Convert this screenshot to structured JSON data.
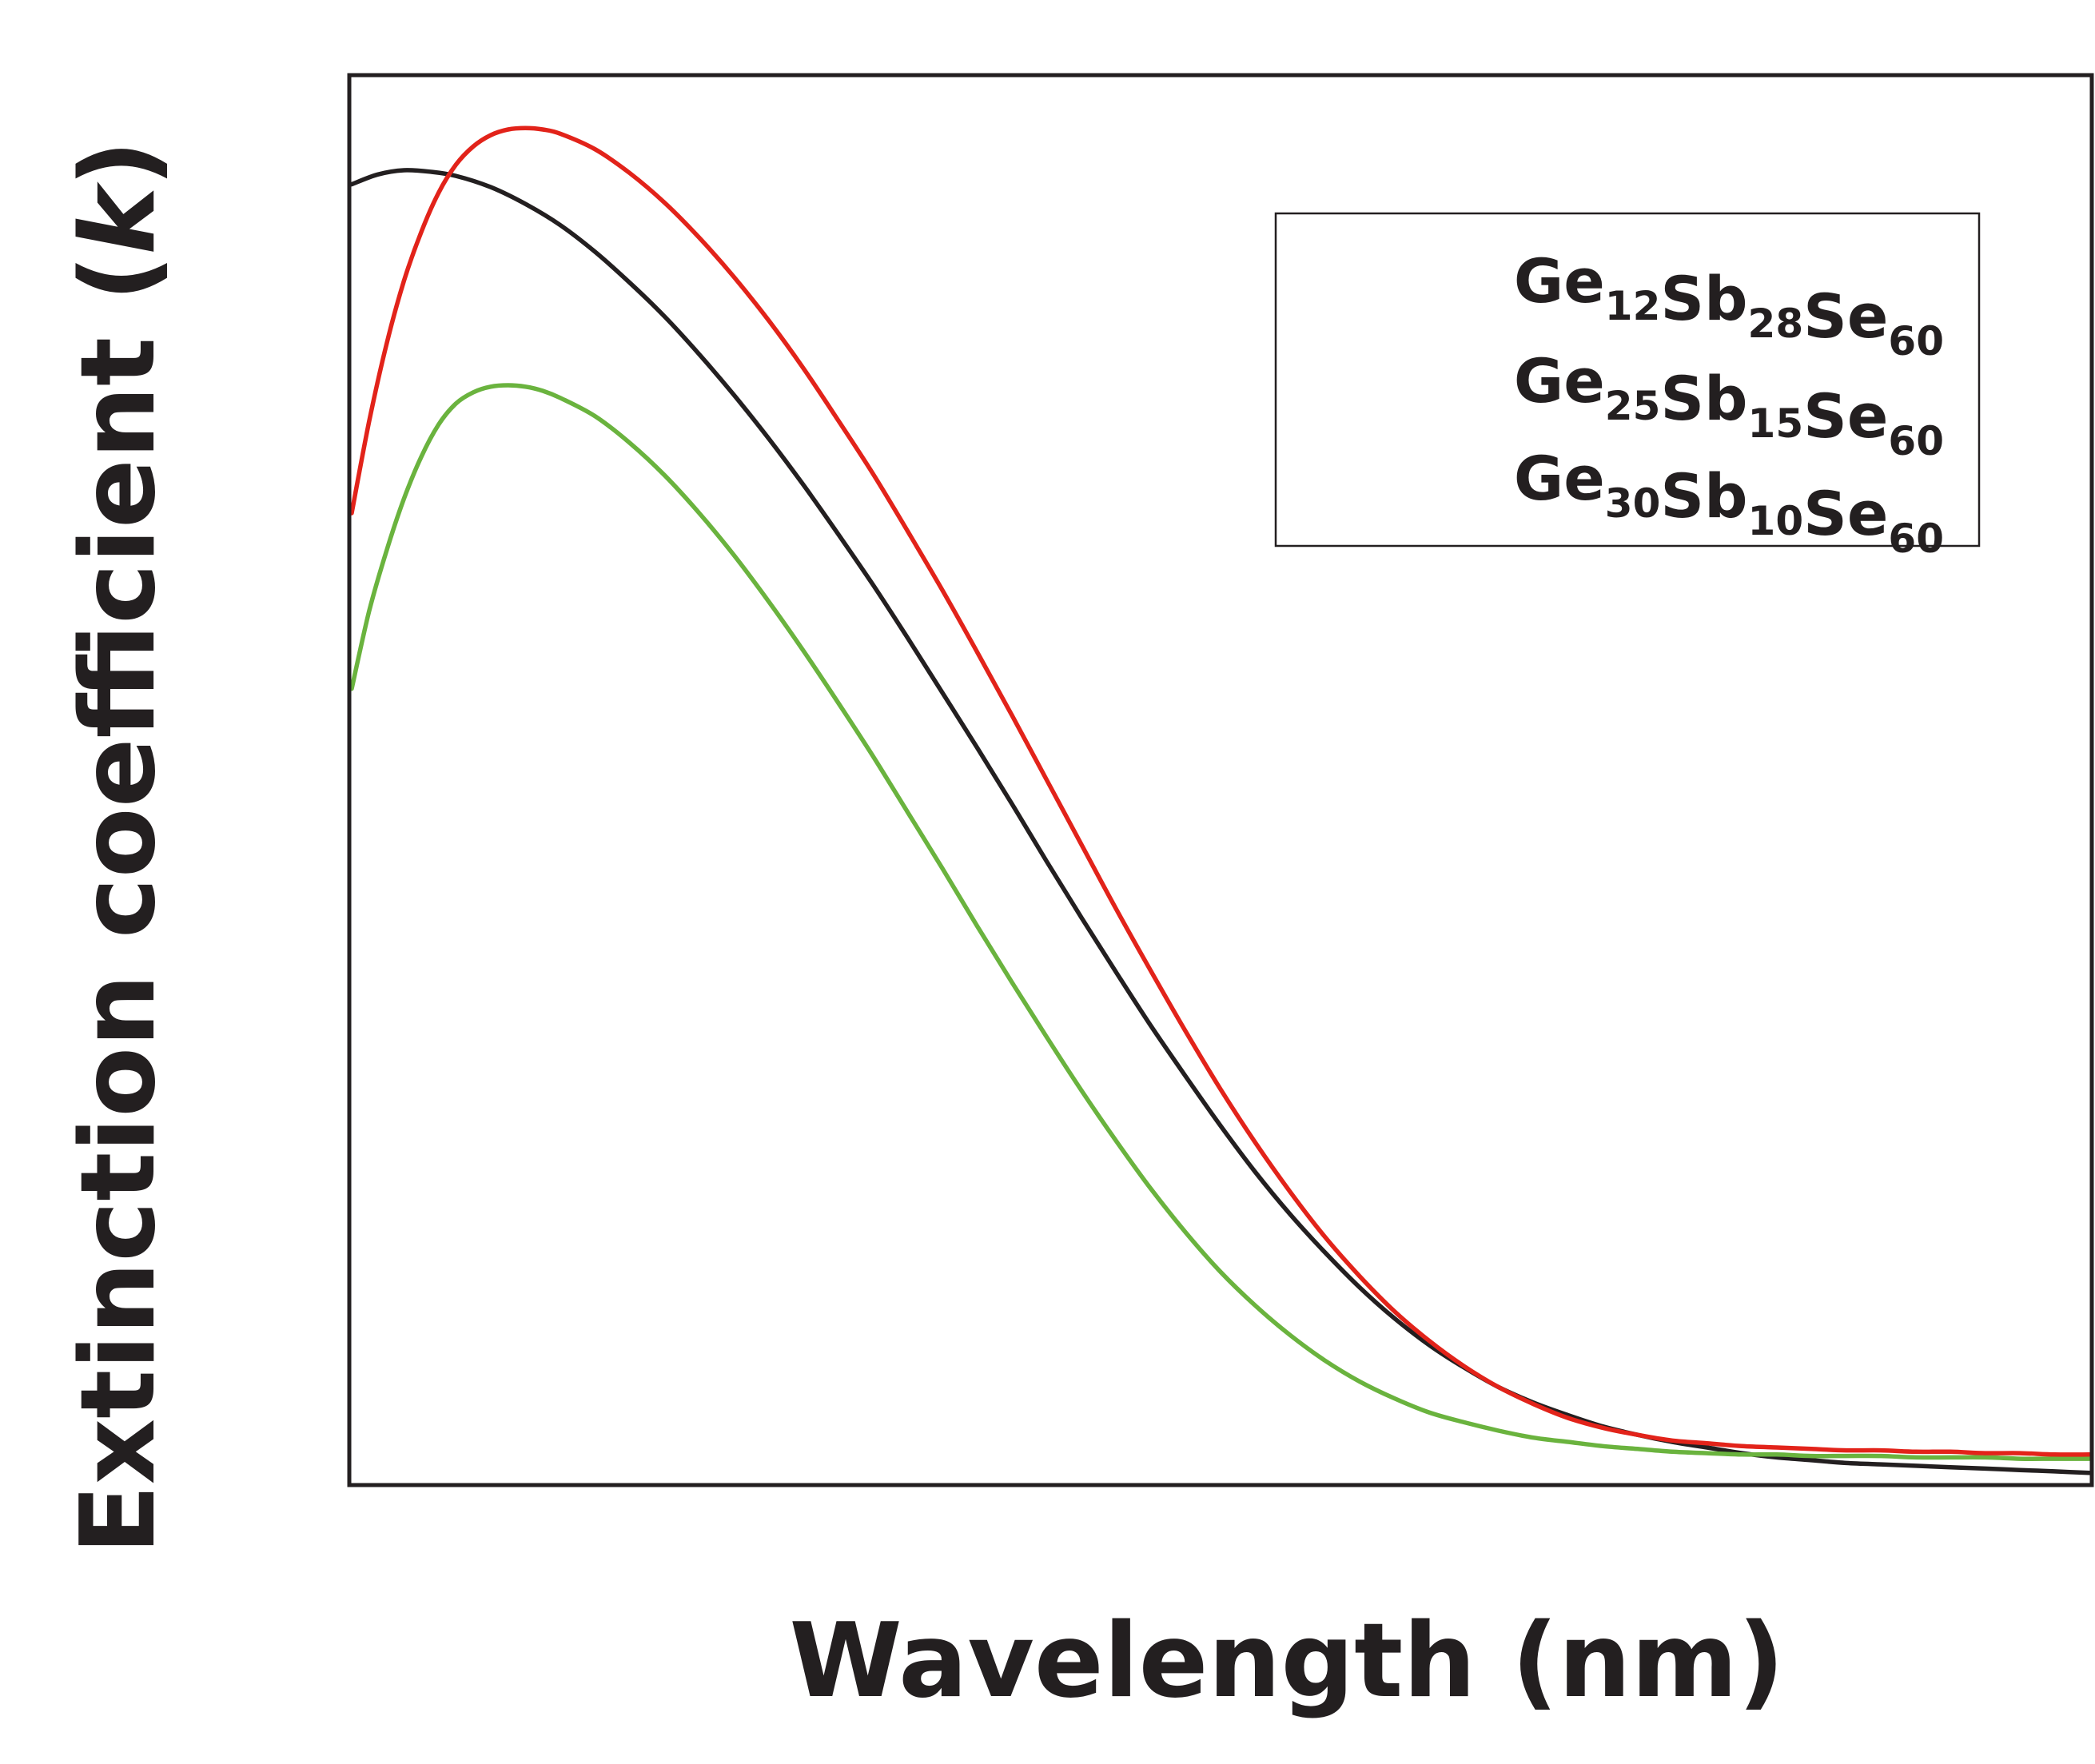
{
  "chart_data": {
    "type": "line",
    "title": "",
    "xlabel": "Wavelength (nm)",
    "ylabel_main": "Extinction coefficient (",
    "ylabel_symbol": "k",
    "ylabel_close": ")",
    "xlim": [
      0,
      100
    ],
    "ylim": [
      0,
      100
    ],
    "grid": false,
    "ticks": "none",
    "legend_position": "top-right",
    "series": [
      {
        "name": "Ge12Sb28Se60",
        "label_parts": [
          [
            "Ge",
            "12"
          ],
          [
            "Sb",
            "28"
          ],
          [
            "Se",
            "60"
          ]
        ],
        "color": "#231f20",
        "x": [
          0,
          1.5,
          3,
          4.5,
          6,
          8,
          10,
          12,
          14,
          16,
          18,
          20,
          22,
          24,
          26,
          28,
          30,
          32,
          34,
          36,
          38,
          40,
          42,
          44,
          46,
          48,
          50,
          52,
          54,
          56,
          58,
          60,
          62,
          64,
          66,
          68,
          70,
          72,
          74,
          76,
          78,
          80,
          82,
          84,
          86,
          88,
          90,
          92,
          94,
          96,
          98,
          100
        ],
        "y": [
          92.4,
          93.1,
          93.4,
          93.3,
          93.0,
          92.2,
          91.0,
          89.5,
          87.6,
          85.4,
          83.0,
          80.3,
          77.4,
          74.3,
          71.0,
          67.5,
          63.9,
          60.1,
          56.2,
          52.3,
          48.3,
          44.2,
          40.2,
          36.3,
          32.5,
          28.9,
          25.4,
          22.1,
          19.1,
          16.4,
          13.9,
          11.7,
          9.8,
          8.2,
          6.8,
          5.7,
          4.8,
          4.0,
          3.4,
          2.9,
          2.5,
          2.1,
          1.8,
          1.6,
          1.4,
          1.3,
          1.2,
          1.1,
          1.0,
          0.9,
          0.8,
          0.7
        ]
      },
      {
        "name": "Ge25Sb15Se60",
        "label_parts": [
          [
            "Ge",
            "25"
          ],
          [
            "Sb",
            "15"
          ],
          [
            "Se",
            "60"
          ]
        ],
        "color": "#e2231a",
        "x": [
          0,
          1,
          2,
          3,
          4,
          5,
          6,
          7,
          8,
          9,
          10,
          11,
          12,
          14,
          16,
          18,
          20,
          22,
          24,
          26,
          28,
          30,
          32,
          34,
          36,
          38,
          40,
          42,
          44,
          46,
          48,
          50,
          52,
          54,
          56,
          58,
          60,
          62,
          64,
          66,
          68,
          70,
          72,
          74,
          76,
          78,
          80,
          82,
          84,
          86,
          88,
          90,
          92,
          94,
          96,
          98,
          100
        ],
        "y": [
          69.0,
          75.5,
          81.0,
          85.5,
          89.0,
          91.8,
          93.8,
          95.1,
          95.9,
          96.3,
          96.4,
          96.3,
          96.0,
          94.9,
          93.2,
          91.1,
          88.6,
          85.8,
          82.7,
          79.3,
          75.6,
          71.8,
          67.7,
          63.5,
          59.1,
          54.6,
          50.0,
          45.4,
          40.8,
          36.4,
          32.1,
          28.0,
          24.2,
          20.7,
          17.5,
          14.7,
          12.2,
          10.1,
          8.3,
          6.8,
          5.6,
          4.6,
          3.9,
          3.4,
          3.0,
          2.8,
          2.6,
          2.5,
          2.4,
          2.3,
          2.3,
          2.2,
          2.2,
          2.1,
          2.1,
          2.0,
          2.0
        ]
      },
      {
        "name": "Ge30Sb10Se60",
        "label_parts": [
          [
            "Ge",
            "30"
          ],
          [
            "Sb",
            "10"
          ],
          [
            "Se",
            "60"
          ]
        ],
        "color": "#6ab33e",
        "x": [
          0,
          1,
          2,
          3,
          4,
          5,
          6,
          7,
          8,
          9,
          10,
          11,
          12,
          14,
          16,
          18,
          20,
          22,
          24,
          26,
          28,
          30,
          32,
          34,
          36,
          38,
          40,
          42,
          44,
          46,
          48,
          50,
          52,
          54,
          56,
          58,
          60,
          62,
          64,
          66,
          68,
          70,
          72,
          74,
          76,
          78,
          80,
          82,
          84,
          86,
          88,
          90,
          92,
          94,
          96,
          98,
          100
        ],
        "y": [
          56.5,
          62.0,
          66.3,
          70.0,
          73.0,
          75.3,
          76.8,
          77.6,
          78.0,
          78.1,
          78.0,
          77.7,
          77.2,
          75.9,
          74.0,
          71.7,
          69.0,
          66.0,
          62.7,
          59.2,
          55.5,
          51.7,
          47.7,
          43.7,
          39.6,
          35.6,
          31.7,
          27.9,
          24.3,
          20.9,
          17.8,
          15.0,
          12.6,
          10.5,
          8.7,
          7.2,
          6.0,
          5.0,
          4.3,
          3.7,
          3.2,
          2.9,
          2.6,
          2.4,
          2.2,
          2.1,
          2.0,
          2.0,
          1.9,
          1.9,
          1.9,
          1.8,
          1.8,
          1.8,
          1.7,
          1.7,
          1.7
        ]
      }
    ]
  }
}
